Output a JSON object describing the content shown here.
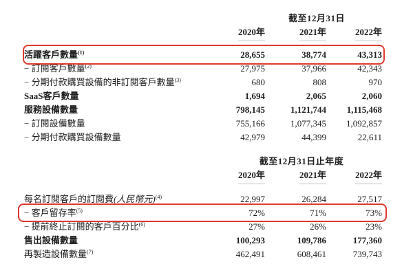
{
  "accent": {
    "highlight_border": "#dd3a2c",
    "text_color": "#1e1e1e",
    "year_rule_color": "#bfbfbf"
  },
  "table1": {
    "period_header": "截至12月31日",
    "years": [
      "2020年",
      "2021年",
      "2022年"
    ],
    "rows": [
      {
        "label": "活躍客戶數量",
        "sup": "(1)",
        "values": [
          "28,655",
          "38,774",
          "43,313"
        ]
      },
      {
        "label": "− 訂閱客戶數量",
        "sup": "(2)",
        "values": [
          "27,975",
          "37,966",
          "42,343"
        ]
      },
      {
        "label": "− 分期付款購買設備的非訂閱客戶數量",
        "sup": "(3)",
        "values": [
          "680",
          "808",
          "970"
        ]
      },
      {
        "label": "SaaS客戶數量",
        "sup": "",
        "values": [
          "1,694",
          "2,065",
          "2,060"
        ]
      },
      {
        "label": "服務設備數量",
        "sup": "",
        "values": [
          "798,145",
          "1,121,744",
          "1,115,468"
        ]
      },
      {
        "label": "− 訂閱設備數量",
        "sup": "",
        "values": [
          "755,166",
          "1,077,345",
          "1,092,857"
        ]
      },
      {
        "label": "− 分期付款購買設備數量",
        "sup": "",
        "values": [
          "42,979",
          "44,399",
          "22,611"
        ]
      }
    ]
  },
  "table2": {
    "period_header": "截至12月31日止年度",
    "years": [
      "2020年",
      "2021年",
      "2022年"
    ],
    "rows": [
      {
        "label": "每名訂閱客戶的訂閱費",
        "note": "(人民幣元)",
        "sup": "(4)",
        "values": [
          "22,997",
          "26,284",
          "27,517"
        ]
      },
      {
        "label": "− 客戶留存率",
        "note": "",
        "sup": "(5)",
        "values": [
          "72%",
          "71%",
          "73%"
        ]
      },
      {
        "label": "− 提前終止訂閱的客戶百分比",
        "note": "",
        "sup": "(6)",
        "values": [
          "27%",
          "26%",
          "23%"
        ]
      },
      {
        "label": "售出設備數量",
        "note": "",
        "sup": "",
        "values": [
          "100,293",
          "109,786",
          "177,360"
        ]
      },
      {
        "label": "再製造設備數量",
        "note": "",
        "sup": "(7)",
        "values": [
          "462,491",
          "608,461",
          "739,743"
        ]
      }
    ]
  }
}
